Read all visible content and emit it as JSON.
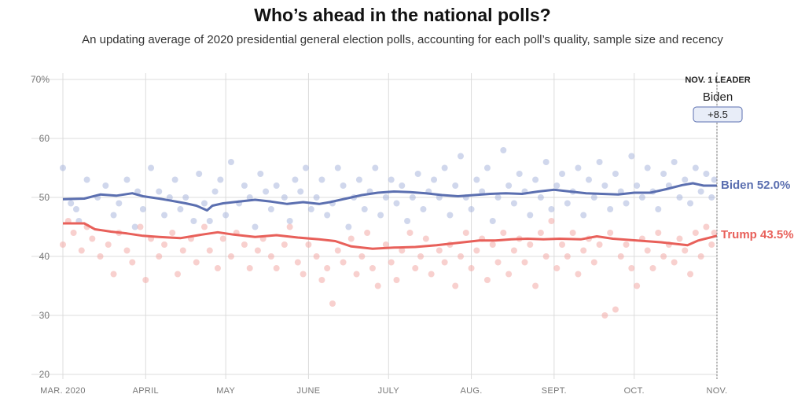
{
  "header": {
    "title": "Who’s ahead in the national polls?",
    "subtitle": "An updating average of 2020 presidential general election polls, accounting for each poll’s quality, sample size and recency"
  },
  "leader": {
    "heading": "NOV. 1 LEADER",
    "name": "Biden",
    "margin": "+8.5"
  },
  "chart_data": {
    "type": "line",
    "title": "Who’s ahead in the national polls?",
    "subtitle": "An updating average of 2020 presidential general election polls, accounting for each poll’s quality, sample size and recency",
    "x_ticks": [
      "MAR. 2020",
      "APRIL",
      "MAY",
      "JUNE",
      "JULY",
      "AUG.",
      "SEPT.",
      "OCT.",
      "NOV."
    ],
    "y_ticks": [
      "70%",
      "60",
      "50",
      "40",
      "30",
      "20"
    ],
    "ylim": [
      20,
      70
    ],
    "x_unit": "days since Mar. 1, 2020",
    "xlim": [
      0,
      245
    ],
    "grid": true,
    "series": [
      {
        "name": "Biden",
        "label": "Biden 52.0%",
        "color": "#5b6fb0",
        "dot_color": "#a9b6dd",
        "points": [
          [
            0,
            49.7
          ],
          [
            8,
            49.8
          ],
          [
            14,
            50.5
          ],
          [
            20,
            50.3
          ],
          [
            26,
            50.7
          ],
          [
            30,
            50.2
          ],
          [
            36,
            49.8
          ],
          [
            40,
            49.5
          ],
          [
            46,
            49.0
          ],
          [
            50,
            48.6
          ],
          [
            54,
            47.8
          ],
          [
            56,
            48.6
          ],
          [
            60,
            49.0
          ],
          [
            66,
            49.3
          ],
          [
            72,
            49.6
          ],
          [
            78,
            49.3
          ],
          [
            84,
            48.9
          ],
          [
            90,
            49.2
          ],
          [
            96,
            48.9
          ],
          [
            100,
            49.2
          ],
          [
            106,
            49.8
          ],
          [
            112,
            50.4
          ],
          [
            118,
            50.8
          ],
          [
            124,
            51.0
          ],
          [
            130,
            50.9
          ],
          [
            136,
            50.7
          ],
          [
            142,
            50.4
          ],
          [
            148,
            50.2
          ],
          [
            154,
            50.4
          ],
          [
            160,
            50.6
          ],
          [
            166,
            50.7
          ],
          [
            172,
            50.6
          ],
          [
            178,
            51.0
          ],
          [
            184,
            51.3
          ],
          [
            190,
            51.0
          ],
          [
            196,
            50.7
          ],
          [
            202,
            50.6
          ],
          [
            208,
            50.5
          ],
          [
            214,
            50.8
          ],
          [
            220,
            50.8
          ],
          [
            226,
            51.4
          ],
          [
            232,
            52.1
          ],
          [
            236,
            52.4
          ],
          [
            240,
            52.0
          ],
          [
            245,
            52.0
          ]
        ]
      },
      {
        "name": "Trump",
        "label": "Trump 43.5%",
        "color": "#e8605a",
        "dot_color": "#f3a9a6",
        "points": [
          [
            0,
            45.6
          ],
          [
            8,
            45.6
          ],
          [
            12,
            44.6
          ],
          [
            18,
            44.2
          ],
          [
            24,
            43.9
          ],
          [
            30,
            43.5
          ],
          [
            36,
            43.3
          ],
          [
            44,
            43.1
          ],
          [
            52,
            43.7
          ],
          [
            58,
            44.1
          ],
          [
            64,
            43.7
          ],
          [
            72,
            43.3
          ],
          [
            80,
            43.6
          ],
          [
            88,
            43.2
          ],
          [
            96,
            42.9
          ],
          [
            102,
            42.6
          ],
          [
            108,
            41.7
          ],
          [
            116,
            41.3
          ],
          [
            124,
            41.5
          ],
          [
            132,
            41.6
          ],
          [
            140,
            41.9
          ],
          [
            148,
            42.3
          ],
          [
            156,
            42.7
          ],
          [
            162,
            42.7
          ],
          [
            168,
            42.9
          ],
          [
            174,
            43.0
          ],
          [
            180,
            42.9
          ],
          [
            186,
            43.0
          ],
          [
            194,
            42.9
          ],
          [
            200,
            43.4
          ],
          [
            206,
            43.0
          ],
          [
            212,
            42.8
          ],
          [
            218,
            42.6
          ],
          [
            224,
            42.4
          ],
          [
            230,
            42.1
          ],
          [
            234,
            41.9
          ],
          [
            238,
            42.7
          ],
          [
            245,
            43.5
          ]
        ]
      }
    ],
    "poll_dots": {
      "Biden": [
        [
          0,
          55
        ],
        [
          3,
          49
        ],
        [
          5,
          48
        ],
        [
          6,
          46
        ],
        [
          9,
          53
        ],
        [
          13,
          50
        ],
        [
          16,
          52
        ],
        [
          19,
          47
        ],
        [
          21,
          49
        ],
        [
          24,
          53
        ],
        [
          27,
          45
        ],
        [
          28,
          51
        ],
        [
          30,
          48
        ],
        [
          33,
          55
        ],
        [
          36,
          51
        ],
        [
          38,
          47
        ],
        [
          40,
          50
        ],
        [
          42,
          53
        ],
        [
          44,
          48
        ],
        [
          46,
          50
        ],
        [
          49,
          46
        ],
        [
          51,
          54
        ],
        [
          53,
          49
        ],
        [
          55,
          46
        ],
        [
          57,
          51
        ],
        [
          59,
          53
        ],
        [
          61,
          47
        ],
        [
          63,
          56
        ],
        [
          66,
          49
        ],
        [
          68,
          52
        ],
        [
          70,
          50
        ],
        [
          72,
          45
        ],
        [
          74,
          54
        ],
        [
          76,
          51
        ],
        [
          78,
          48
        ],
        [
          80,
          52
        ],
        [
          83,
          50
        ],
        [
          85,
          46
        ],
        [
          87,
          53
        ],
        [
          89,
          51
        ],
        [
          91,
          55
        ],
        [
          93,
          48
        ],
        [
          95,
          50
        ],
        [
          97,
          53
        ],
        [
          99,
          47
        ],
        [
          101,
          49
        ],
        [
          103,
          55
        ],
        [
          105,
          52
        ],
        [
          107,
          45
        ],
        [
          109,
          50
        ],
        [
          111,
          53
        ],
        [
          113,
          48
        ],
        [
          115,
          51
        ],
        [
          117,
          55
        ],
        [
          119,
          47
        ],
        [
          121,
          50
        ],
        [
          123,
          53
        ],
        [
          125,
          49
        ],
        [
          127,
          52
        ],
        [
          129,
          46
        ],
        [
          131,
          50
        ],
        [
          133,
          54
        ],
        [
          135,
          48
        ],
        [
          137,
          51
        ],
        [
          139,
          53
        ],
        [
          141,
          50
        ],
        [
          143,
          55
        ],
        [
          145,
          47
        ],
        [
          147,
          52
        ],
        [
          149,
          57
        ],
        [
          151,
          50
        ],
        [
          153,
          48
        ],
        [
          155,
          53
        ],
        [
          157,
          51
        ],
        [
          159,
          55
        ],
        [
          161,
          46
        ],
        [
          163,
          50
        ],
        [
          165,
          58
        ],
        [
          167,
          52
        ],
        [
          169,
          49
        ],
        [
          171,
          54
        ],
        [
          173,
          51
        ],
        [
          175,
          47
        ],
        [
          177,
          53
        ],
        [
          179,
          50
        ],
        [
          181,
          56
        ],
        [
          183,
          48
        ],
        [
          185,
          52
        ],
        [
          187,
          54
        ],
        [
          189,
          49
        ],
        [
          191,
          51
        ],
        [
          193,
          55
        ],
        [
          195,
          47
        ],
        [
          197,
          53
        ],
        [
          199,
          50
        ],
        [
          201,
          56
        ],
        [
          203,
          52
        ],
        [
          205,
          48
        ],
        [
          207,
          54
        ],
        [
          209,
          51
        ],
        [
          211,
          49
        ],
        [
          213,
          57
        ],
        [
          215,
          52
        ],
        [
          217,
          50
        ],
        [
          219,
          55
        ],
        [
          221,
          51
        ],
        [
          223,
          48
        ],
        [
          225,
          54
        ],
        [
          227,
          52
        ],
        [
          229,
          56
        ],
        [
          231,
          50
        ],
        [
          233,
          53
        ],
        [
          235,
          49
        ],
        [
          237,
          55
        ],
        [
          239,
          51
        ],
        [
          241,
          54
        ],
        [
          243,
          50
        ],
        [
          244,
          53
        ]
      ],
      "Trump": [
        [
          0,
          42
        ],
        [
          2,
          46
        ],
        [
          4,
          44
        ],
        [
          7,
          41
        ],
        [
          9,
          45
        ],
        [
          11,
          43
        ],
        [
          14,
          40
        ],
        [
          17,
          42
        ],
        [
          19,
          37
        ],
        [
          21,
          44
        ],
        [
          24,
          41
        ],
        [
          26,
          39
        ],
        [
          29,
          45
        ],
        [
          31,
          36
        ],
        [
          33,
          43
        ],
        [
          36,
          40
        ],
        [
          38,
          42
        ],
        [
          41,
          44
        ],
        [
          43,
          37
        ],
        [
          45,
          41
        ],
        [
          48,
          43
        ],
        [
          50,
          39
        ],
        [
          53,
          45
        ],
        [
          55,
          41
        ],
        [
          58,
          38
        ],
        [
          60,
          43
        ],
        [
          63,
          40
        ],
        [
          65,
          44
        ],
        [
          68,
          42
        ],
        [
          70,
          38
        ],
        [
          73,
          41
        ],
        [
          75,
          43
        ],
        [
          78,
          40
        ],
        [
          80,
          38
        ],
        [
          83,
          42
        ],
        [
          85,
          45
        ],
        [
          88,
          39
        ],
        [
          90,
          37
        ],
        [
          92,
          42
        ],
        [
          95,
          40
        ],
        [
          97,
          36
        ],
        [
          99,
          38
        ],
        [
          101,
          32
        ],
        [
          103,
          41
        ],
        [
          105,
          39
        ],
        [
          108,
          43
        ],
        [
          110,
          37
        ],
        [
          112,
          40
        ],
        [
          114,
          44
        ],
        [
          116,
          38
        ],
        [
          118,
          35
        ],
        [
          121,
          42
        ],
        [
          123,
          39
        ],
        [
          125,
          36
        ],
        [
          127,
          41
        ],
        [
          130,
          44
        ],
        [
          132,
          38
        ],
        [
          134,
          40
        ],
        [
          136,
          43
        ],
        [
          138,
          37
        ],
        [
          141,
          41
        ],
        [
          143,
          39
        ],
        [
          145,
          42
        ],
        [
          147,
          35
        ],
        [
          149,
          40
        ],
        [
          151,
          44
        ],
        [
          153,
          38
        ],
        [
          155,
          41
        ],
        [
          157,
          43
        ],
        [
          159,
          36
        ],
        [
          161,
          42
        ],
        [
          163,
          39
        ],
        [
          165,
          44
        ],
        [
          167,
          37
        ],
        [
          169,
          41
        ],
        [
          171,
          43
        ],
        [
          173,
          39
        ],
        [
          175,
          42
        ],
        [
          177,
          35
        ],
        [
          179,
          44
        ],
        [
          181,
          40
        ],
        [
          183,
          46
        ],
        [
          185,
          38
        ],
        [
          187,
          42
        ],
        [
          189,
          40
        ],
        [
          191,
          44
        ],
        [
          193,
          37
        ],
        [
          195,
          41
        ],
        [
          197,
          43
        ],
        [
          199,
          39
        ],
        [
          201,
          42
        ],
        [
          203,
          30
        ],
        [
          205,
          44
        ],
        [
          207,
          31
        ],
        [
          209,
          40
        ],
        [
          211,
          42
        ],
        [
          213,
          38
        ],
        [
          215,
          35
        ],
        [
          217,
          43
        ],
        [
          219,
          41
        ],
        [
          221,
          38
        ],
        [
          223,
          44
        ],
        [
          225,
          40
        ],
        [
          227,
          42
        ],
        [
          229,
          39
        ],
        [
          231,
          43
        ],
        [
          233,
          41
        ],
        [
          235,
          37
        ],
        [
          237,
          44
        ],
        [
          239,
          40
        ],
        [
          241,
          45
        ],
        [
          243,
          42
        ],
        [
          244,
          44
        ]
      ]
    }
  }
}
